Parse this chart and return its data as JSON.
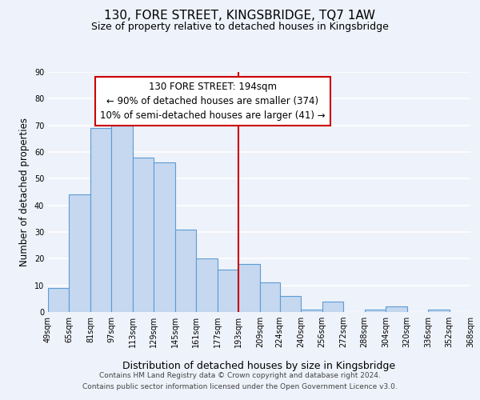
{
  "title": "130, FORE STREET, KINGSBRIDGE, TQ7 1AW",
  "subtitle": "Size of property relative to detached houses in Kingsbridge",
  "xlabel": "Distribution of detached houses by size in Kingsbridge",
  "ylabel": "Number of detached properties",
  "bar_color": "#c5d8f0",
  "bar_edge_color": "#5b9bd5",
  "background_color": "#eef2fa",
  "grid_color": "#ffffff",
  "vline_color": "#cc0000",
  "bins": [
    49,
    65,
    81,
    97,
    113,
    129,
    145,
    161,
    177,
    193,
    209,
    224,
    240,
    256,
    272,
    288,
    304,
    320,
    336,
    352,
    368
  ],
  "values": [
    9,
    44,
    69,
    70,
    58,
    56,
    31,
    20,
    16,
    18,
    11,
    6,
    1,
    4,
    0,
    1,
    2,
    0,
    1,
    0
  ],
  "tick_labels": [
    "49sqm",
    "65sqm",
    "81sqm",
    "97sqm",
    "113sqm",
    "129sqm",
    "145sqm",
    "161sqm",
    "177sqm",
    "193sqm",
    "209sqm",
    "224sqm",
    "240sqm",
    "256sqm",
    "272sqm",
    "288sqm",
    "304sqm",
    "320sqm",
    "336sqm",
    "352sqm",
    "368sqm"
  ],
  "ylim": [
    0,
    90
  ],
  "annotation_title": "130 FORE STREET: 194sqm",
  "annotation_line1": "← 90% of detached houses are smaller (374)",
  "annotation_line2": "10% of semi-detached houses are larger (41) →",
  "annotation_box_color": "#ffffff",
  "annotation_box_edge": "#cc0000",
  "footer1": "Contains HM Land Registry data © Crown copyright and database right 2024.",
  "footer2": "Contains public sector information licensed under the Open Government Licence v3.0.",
  "title_fontsize": 11,
  "subtitle_fontsize": 9,
  "ylabel_fontsize": 8.5,
  "xlabel_fontsize": 9,
  "tick_fontsize": 7,
  "footer_fontsize": 6.5,
  "annotation_fontsize": 8.5,
  "vline_x": 193
}
